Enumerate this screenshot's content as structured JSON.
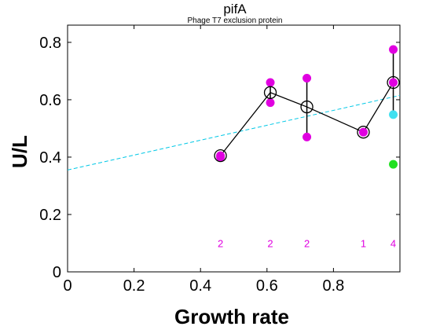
{
  "chart_data": {
    "type": "scatter",
    "title": "pifA",
    "subtitle": "Phage T7 exclusion protein",
    "xlabel": "Growth rate",
    "ylabel": "U/L",
    "xlim": [
      0,
      1
    ],
    "ylim": [
      0,
      0.86
    ],
    "xticks": [
      "0",
      "0.2",
      "0.4",
      "0.6",
      "0.8"
    ],
    "yticks": [
      "0",
      "0.2",
      "0.4",
      "0.6",
      "0.8"
    ],
    "grid": false,
    "colors": {
      "replicates": "#e000e0",
      "mean": "#000000",
      "fit": "#00c8e6",
      "cyan_point": "#40e0f0",
      "green_point": "#20e020",
      "counts": "#e000e0"
    },
    "mean_series": [
      {
        "x": 0.46,
        "y": 0.405
      },
      {
        "x": 0.61,
        "y": 0.625
      },
      {
        "x": 0.72,
        "y": 0.575
      },
      {
        "x": 0.89,
        "y": 0.487
      },
      {
        "x": 0.98,
        "y": 0.66
      }
    ],
    "replicate_points": [
      {
        "x": 0.46,
        "y": 0.405
      },
      {
        "x": 0.46,
        "y": 0.4
      },
      {
        "x": 0.61,
        "y": 0.66
      },
      {
        "x": 0.61,
        "y": 0.59
      },
      {
        "x": 0.72,
        "y": 0.675
      },
      {
        "x": 0.72,
        "y": 0.47
      },
      {
        "x": 0.89,
        "y": 0.487
      },
      {
        "x": 0.98,
        "y": 0.775
      },
      {
        "x": 0.98,
        "y": 0.66
      }
    ],
    "error_bars": [
      {
        "x": 0.61,
        "low": 0.59,
        "high": 0.66
      },
      {
        "x": 0.72,
        "low": 0.47,
        "high": 0.675
      },
      {
        "x": 0.98,
        "low": 0.548,
        "high": 0.775
      }
    ],
    "extra_points": [
      {
        "x": 0.98,
        "y": 0.548,
        "color": "cyan"
      },
      {
        "x": 0.98,
        "y": 0.375,
        "color": "green"
      }
    ],
    "fit_line": {
      "x0": 0,
      "y0": 0.355,
      "x1": 1,
      "y1": 0.615
    },
    "counts": [
      {
        "x": 0.46,
        "label": "2"
      },
      {
        "x": 0.61,
        "label": "2"
      },
      {
        "x": 0.72,
        "label": "2"
      },
      {
        "x": 0.89,
        "label": "1"
      },
      {
        "x": 0.98,
        "label": "4"
      }
    ],
    "counts_y": 0.1
  }
}
